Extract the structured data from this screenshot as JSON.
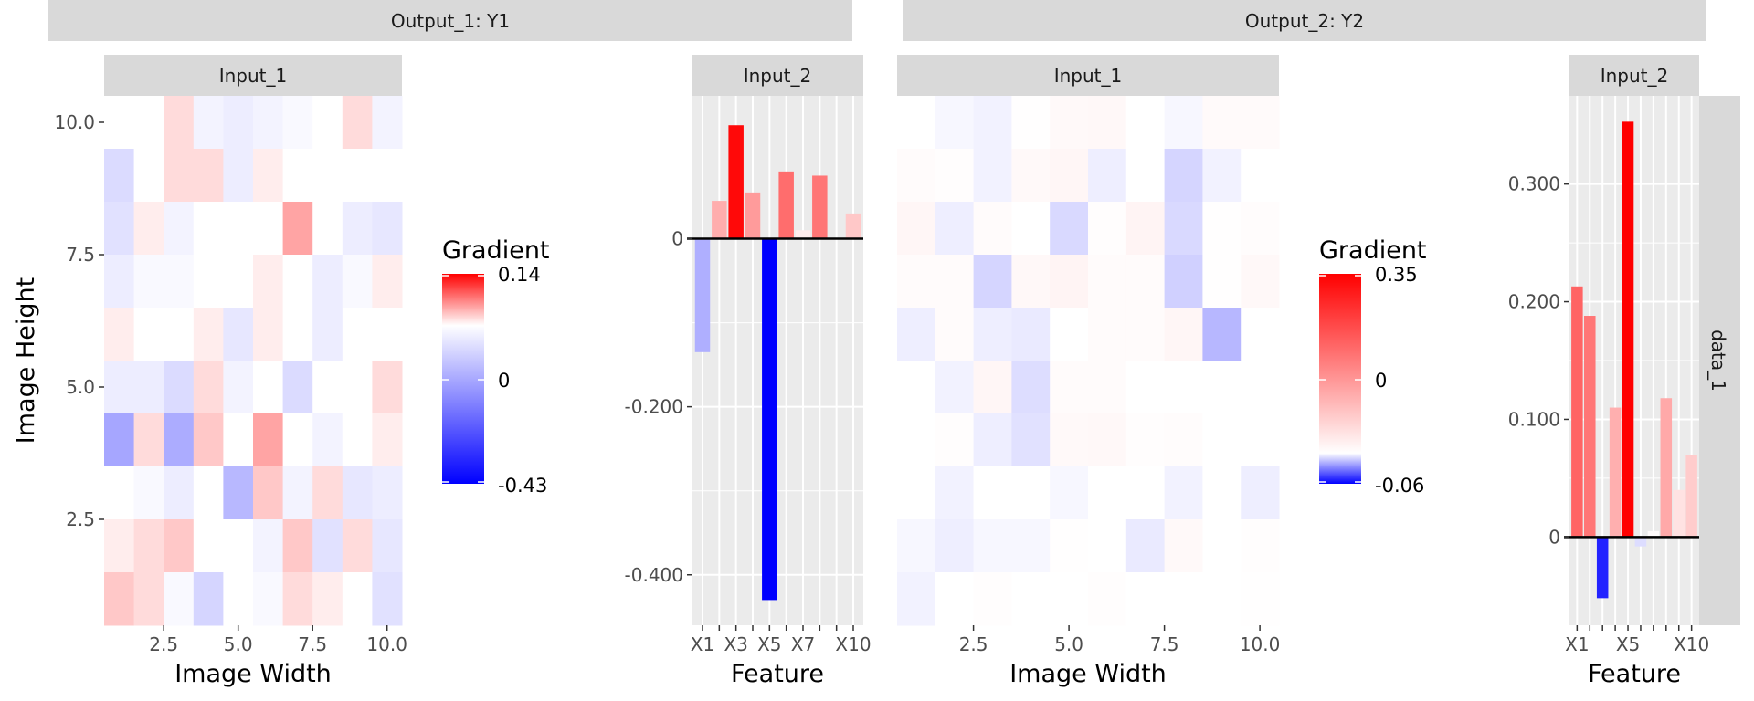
{
  "chart_data": {
    "type": "heatmap",
    "output_strips": [
      {
        "label": "Output_1: Y1"
      },
      {
        "label": "Output_2: Y2"
      }
    ],
    "row_strip": "data_1",
    "panels": [
      {
        "id": "o1-input1",
        "output": "Output_1: Y1",
        "strip": "Input_1",
        "type": "heatmap",
        "xlabel": "Image Width",
        "ylabel": "Image Height",
        "x_ticks": [
          "2.5",
          "5.0",
          "7.5",
          "10.0"
        ],
        "y_ticks": [
          "10.0",
          "7.5",
          "5.0",
          "2.5"
        ],
        "values": [
          [
            0.0,
            0.0,
            0.02,
            -0.02,
            -0.03,
            -0.02,
            -0.01,
            0.0,
            0.02,
            -0.02
          ],
          [
            -0.06,
            0.0,
            0.02,
            0.02,
            -0.03,
            0.01,
            0.0,
            0.0,
            0.0,
            0.0
          ],
          [
            -0.05,
            0.01,
            -0.02,
            0.0,
            0.0,
            0.0,
            0.05,
            0.0,
            -0.03,
            -0.04
          ],
          [
            -0.03,
            -0.01,
            -0.01,
            0.0,
            0.0,
            0.01,
            0.0,
            -0.03,
            -0.01,
            0.01
          ],
          [
            0.01,
            0.0,
            0.0,
            0.01,
            -0.04,
            0.01,
            0.0,
            -0.03,
            0.0,
            0.0
          ],
          [
            -0.03,
            -0.03,
            -0.06,
            0.02,
            -0.02,
            0.0,
            -0.06,
            0.0,
            0.0,
            0.02
          ],
          [
            -0.15,
            0.02,
            -0.14,
            0.03,
            0.0,
            0.05,
            0.0,
            -0.02,
            0.0,
            0.01
          ],
          [
            0.0,
            -0.01,
            -0.03,
            0.0,
            -0.12,
            0.03,
            -0.02,
            0.02,
            -0.04,
            -0.03
          ],
          [
            0.01,
            0.02,
            0.03,
            0.0,
            0.0,
            -0.02,
            0.03,
            -0.05,
            0.02,
            -0.04
          ],
          [
            0.03,
            0.02,
            -0.01,
            -0.07,
            0.0,
            -0.01,
            0.02,
            0.01,
            0.0,
            -0.05
          ]
        ],
        "legend": {
          "title": "Gradient",
          "max": "0.14",
          "mid": "0",
          "min": "-0.43",
          "max_value": 0.14,
          "min_value": -0.43
        }
      },
      {
        "id": "o1-input2",
        "output": "Output_1: Y1",
        "strip": "Input_2",
        "type": "bar",
        "xlabel": "Feature",
        "categories": [
          "X1",
          "X2",
          "X3",
          "X4",
          "X5",
          "X6",
          "X7",
          "X8",
          "X9",
          "X10"
        ],
        "x_tick_labels": [
          "X1",
          "",
          "X3",
          "",
          "X5",
          "",
          "X7",
          "",
          "",
          "X10"
        ],
        "values": [
          -0.135,
          0.045,
          0.135,
          0.055,
          -0.43,
          0.08,
          0.01,
          0.075,
          0.0,
          0.03
        ],
        "y_ticks": [
          "-0.400",
          "-0.200",
          "0"
        ],
        "y_tick_values": [
          -0.4,
          -0.2,
          0
        ],
        "ylim": [
          -0.46,
          0.17
        ]
      },
      {
        "id": "o2-input1",
        "output": "Output_2: Y2",
        "strip": "Input_1",
        "type": "heatmap",
        "xlabel": "Image Width",
        "x_ticks": [
          "2.5",
          "5.0",
          "7.5",
          "10.0"
        ],
        "values": [
          [
            0.0,
            -0.002,
            -0.003,
            0.002,
            0.008,
            0.01,
            0.0,
            -0.002,
            0.007,
            0.007
          ],
          [
            0.005,
            0.003,
            -0.003,
            0.008,
            0.013,
            -0.004,
            0.0,
            -0.01,
            -0.003,
            0.0
          ],
          [
            0.013,
            -0.004,
            0.005,
            0.0,
            -0.009,
            0.003,
            0.015,
            -0.009,
            0.002,
            0.004
          ],
          [
            0.006,
            0.005,
            -0.01,
            0.01,
            0.015,
            0.005,
            0.005,
            -0.011,
            0.002,
            0.01
          ],
          [
            -0.004,
            0.005,
            -0.004,
            -0.005,
            0.0,
            0.005,
            0.006,
            0.013,
            -0.017,
            0.0
          ],
          [
            0.0,
            -0.003,
            0.012,
            -0.008,
            0.005,
            0.005,
            0.0,
            0.0,
            0.0,
            0.0
          ],
          [
            0.0,
            0.003,
            -0.004,
            -0.007,
            0.008,
            0.01,
            0.003,
            0.004,
            0.0,
            0.0
          ],
          [
            0.0,
            -0.003,
            0.0,
            0.0,
            -0.002,
            0.0,
            0.0,
            -0.003,
            0.0,
            -0.004
          ],
          [
            -0.002,
            -0.004,
            -0.002,
            -0.002,
            0.002,
            0.0,
            -0.005,
            0.008,
            0.0,
            0.003
          ],
          [
            -0.003,
            0.0,
            0.003,
            0.0,
            0.0,
            0.003,
            0.0,
            0.0,
            0.0,
            0.002
          ]
        ],
        "legend": {
          "title": "Gradient",
          "max": "0.35",
          "mid": "0",
          "min": "-0.06",
          "max_value": 0.35,
          "min_value": -0.06
        }
      },
      {
        "id": "o2-input2",
        "output": "Output_2: Y2",
        "strip": "Input_2",
        "type": "bar",
        "xlabel": "Feature",
        "categories": [
          "X1",
          "X2",
          "X3",
          "X4",
          "X5",
          "X6",
          "X7",
          "X8",
          "X9",
          "X10"
        ],
        "x_tick_labels": [
          "X1",
          "",
          "",
          "",
          "X5",
          "",
          "",
          "",
          "",
          "X10"
        ],
        "values": [
          0.213,
          0.188,
          -0.052,
          0.11,
          0.353,
          -0.008,
          0.005,
          0.118,
          0.04,
          0.07
        ],
        "y_ticks": [
          "0",
          "0.100",
          "0.200",
          "0.300"
        ],
        "y_tick_values": [
          0,
          0.1,
          0.2,
          0.3
        ],
        "ylim": [
          -0.075,
          0.375
        ]
      }
    ]
  }
}
